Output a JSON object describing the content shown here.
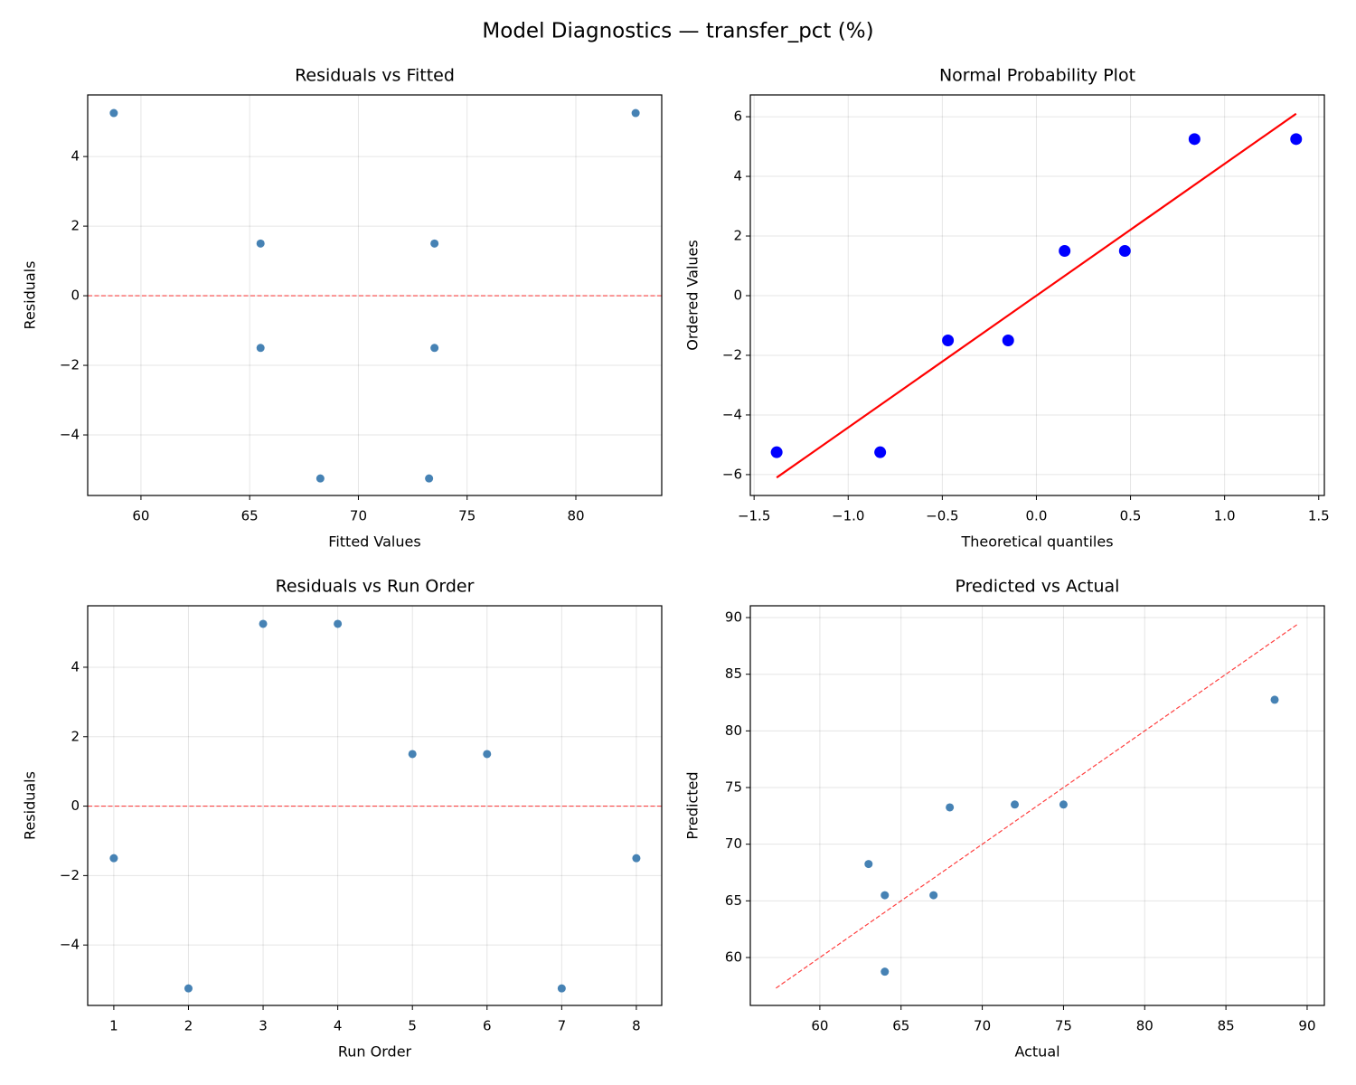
{
  "title": "Model Diagnostics — transfer_pct (%)",
  "chart_data": [
    {
      "type": "scatter",
      "title": "Residuals vs Fitted",
      "xlabel": "Fitted Values",
      "ylabel": "Residuals",
      "xlim": [
        57.55,
        83.95
      ],
      "ylim": [
        -5.74,
        5.77
      ],
      "xticks": [
        60,
        65,
        70,
        75,
        80
      ],
      "yticks": [
        {
          "value": -4,
          "label": "−4"
        },
        {
          "value": -2,
          "label": "−2"
        },
        0,
        2,
        4
      ],
      "grid": true,
      "hline": {
        "y": 0,
        "color": "#ff0000",
        "linestyle": "dashed"
      },
      "series": [
        {
          "mode": "markers",
          "color": "#4682b4",
          "x": [
            65.5,
            68.25,
            58.75,
            82.75,
            65.5,
            73.5,
            73.25,
            73.5
          ],
          "values": [
            -1.5,
            -5.25,
            5.25,
            5.25,
            1.5,
            1.5,
            -5.25,
            -1.5
          ]
        }
      ]
    },
    {
      "type": "scatter",
      "title": "Normal Probability Plot",
      "xlabel": "Theoretical quantiles",
      "ylabel": "Ordered Values",
      "xlim": [
        -1.52,
        1.53
      ],
      "ylim": [
        -6.7,
        6.73
      ],
      "xticks": [
        {
          "value": -1.5,
          "label": "−1.5"
        },
        {
          "value": -1,
          "label": "−1.0"
        },
        {
          "value": -0.5,
          "label": "−0.5"
        },
        {
          "value": 0,
          "label": "0.0"
        },
        0.5,
        {
          "value": 1,
          "label": "1.0"
        },
        1.5
      ],
      "yticks": [
        {
          "value": -6,
          "label": "−6"
        },
        {
          "value": -4,
          "label": "−4"
        },
        {
          "value": -2,
          "label": "−2"
        },
        0,
        2,
        4,
        6
      ],
      "grid": true,
      "series": [
        {
          "mode": "markers",
          "color": "#0000ff",
          "x": [
            -1.38,
            -0.83,
            -0.47,
            -0.15,
            0.15,
            0.47,
            0.84,
            1.38
          ],
          "values": [
            -5.25,
            -5.25,
            -1.5,
            -1.5,
            1.5,
            1.5,
            5.25,
            5.25
          ]
        },
        {
          "mode": "line",
          "color": "#ff0000",
          "linestyle": "solid",
          "x": [
            -1.38,
            1.38
          ],
          "values": [
            -6.1,
            6.1
          ]
        }
      ]
    },
    {
      "type": "scatter",
      "title": "Residuals vs Run Order",
      "xlabel": "Run Order",
      "ylabel": "Residuals",
      "xlim": [
        0.65,
        8.34
      ],
      "ylim": [
        -5.74,
        5.77
      ],
      "xticks": [
        1,
        2,
        3,
        4,
        5,
        6,
        7,
        8
      ],
      "yticks": [
        {
          "value": -4,
          "label": "−4"
        },
        {
          "value": -2,
          "label": "−2"
        },
        0,
        2,
        4
      ],
      "grid": true,
      "hline": {
        "y": 0,
        "color": "#ff0000",
        "linestyle": "dashed"
      },
      "series": [
        {
          "mode": "markers",
          "color": "#4682b4",
          "x": [
            1,
            2,
            3,
            4,
            5,
            6,
            7,
            8
          ],
          "values": [
            -1.5,
            -5.25,
            5.25,
            5.25,
            1.5,
            1.5,
            -5.25,
            -1.5
          ]
        }
      ]
    },
    {
      "type": "scatter",
      "title": "Predicted vs Actual",
      "xlabel": "Actual",
      "ylabel": "Predicted",
      "xlim": [
        55.72,
        91.06
      ],
      "ylim": [
        55.77,
        91.04
      ],
      "xticks": [
        60,
        65,
        70,
        75,
        80,
        85,
        90
      ],
      "yticks": [
        60,
        65,
        70,
        75,
        80,
        85,
        90
      ],
      "grid": true,
      "series": [
        {
          "mode": "markers",
          "color": "#4682b4",
          "x": [
            64,
            63,
            64,
            88,
            67,
            75,
            68,
            72
          ],
          "values": [
            65.5,
            68.25,
            58.75,
            82.75,
            65.5,
            73.5,
            73.25,
            73.5
          ]
        },
        {
          "mode": "line",
          "color": "#ff0000",
          "linestyle": "dashed",
          "x": [
            57.3,
            89.4
          ],
          "values": [
            57.3,
            89.4
          ]
        }
      ]
    }
  ]
}
